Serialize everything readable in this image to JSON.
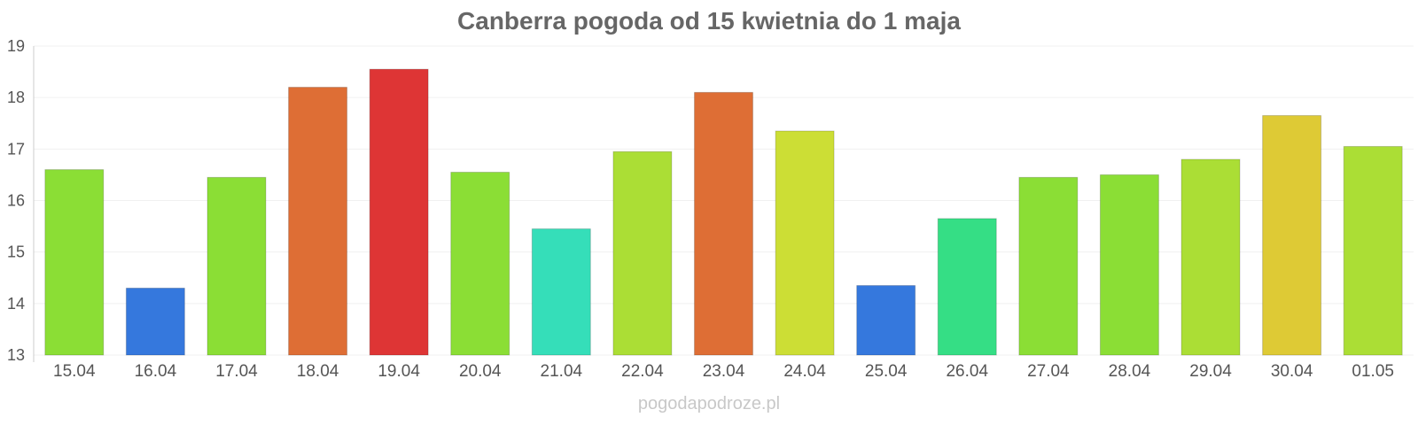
{
  "chart_data": {
    "type": "bar",
    "title": "Canberra pogoda od 15 kwietnia do 1 maja",
    "xlabel": "",
    "ylabel": "",
    "ylim": [
      13,
      19
    ],
    "yticks": [
      13,
      14,
      15,
      16,
      17,
      18,
      19
    ],
    "grid": true,
    "legend": "none",
    "categories": [
      "15.04",
      "16.04",
      "17.04",
      "18.04",
      "19.04",
      "20.04",
      "21.04",
      "22.04",
      "23.04",
      "24.04",
      "25.04",
      "26.04",
      "27.04",
      "28.04",
      "29.04",
      "30.04",
      "01.05"
    ],
    "values": [
      16.6,
      14.3,
      16.45,
      18.2,
      18.55,
      16.55,
      15.45,
      16.95,
      18.1,
      17.35,
      14.35,
      15.65,
      16.45,
      16.5,
      16.8,
      17.65,
      17.05
    ],
    "colors": [
      "#8bde35",
      "#3578dd",
      "#8bde35",
      "#de6e35",
      "#de3535",
      "#8bde35",
      "#35deb9",
      "#abde35",
      "#de6e35",
      "#ccde35",
      "#3578dd",
      "#35de85",
      "#8bde35",
      "#8bde35",
      "#abde35",
      "#deca35",
      "#abde35"
    ]
  },
  "watermark": "pogodapodroze.pl"
}
